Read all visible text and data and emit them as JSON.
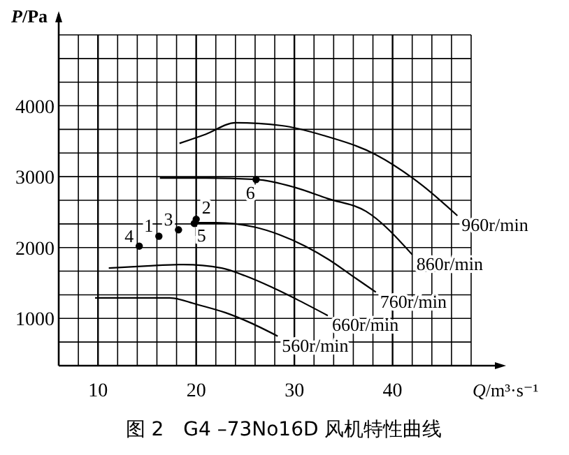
{
  "chart_data": {
    "type": "line",
    "title": "图 2　G4 –73No16D 风机特性曲线",
    "xlabel": "Q/m³·s⁻¹",
    "ylabel": "P/Pa",
    "xlim": [
      6,
      48
    ],
    "ylim": [
      333.3,
      5000
    ],
    "xticks": [
      {
        "value": 6,
        "label": null
      },
      {
        "value": 8,
        "label": null
      },
      10,
      {
        "value": 12,
        "label": null
      },
      {
        "value": 14,
        "label": null
      },
      {
        "value": 16,
        "label": null
      },
      {
        "value": 18,
        "label": null
      },
      20,
      {
        "value": 22,
        "label": null
      },
      {
        "value": 24,
        "label": null
      },
      {
        "value": 26,
        "label": null
      },
      {
        "value": 28,
        "label": null
      },
      30,
      {
        "value": 32,
        "label": null
      },
      {
        "value": 34,
        "label": null
      },
      {
        "value": 36,
        "label": null
      },
      {
        "value": 38,
        "label": null
      },
      40,
      {
        "value": 42,
        "label": null
      },
      {
        "value": 44,
        "label": null
      },
      {
        "value": 46,
        "label": null
      },
      {
        "value": 48,
        "label": null
      }
    ],
    "yticks": [
      {
        "value": 333.3,
        "label": null
      },
      {
        "value": 666.7,
        "label": null
      },
      1000,
      {
        "value": 1333.3,
        "label": null
      },
      {
        "value": 1666.7,
        "label": null
      },
      2000,
      {
        "value": 2333.3,
        "label": null
      },
      {
        "value": 2666.7,
        "label": null
      },
      3000,
      {
        "value": 3333.3,
        "label": null
      },
      {
        "value": 3666.7,
        "label": null
      },
      4000,
      {
        "value": 4333.3,
        "label": null
      },
      {
        "value": 4666.7,
        "label": null
      },
      {
        "value": 5000,
        "label": null
      }
    ],
    "grid": true,
    "legend": false,
    "line_style": "solid",
    "marker": "none",
    "series": [
      {
        "name": "960r/min",
        "color": "#000000",
        "x": [
          18.3,
          21,
          24,
          28.7,
          33,
          38.3,
          43,
          46.6
        ],
        "values": [
          3470,
          3600,
          3760,
          3720,
          3580,
          3310,
          2880,
          2450
        ]
      },
      {
        "name": "860r/min",
        "color": "#000000",
        "x": [
          16.3,
          21,
          26.1,
          30,
          33.4,
          37.3,
          42
        ],
        "values": [
          2980,
          2980,
          2960,
          2850,
          2690,
          2510,
          1900
        ]
      },
      {
        "name": "760r/min",
        "color": "#000000",
        "x": [
          20,
          22,
          25.9,
          28.5,
          31.1,
          33.5,
          35.9,
          38.3
        ],
        "values": [
          2350,
          2350,
          2290,
          2180,
          2020,
          1830,
          1600,
          1370
        ]
      },
      {
        "name": "660r/min",
        "color": "#000000",
        "x": [
          11.1,
          15,
          18.7,
          22.6,
          25,
          27.7,
          30.5,
          33.4
        ],
        "values": [
          1710,
          1740,
          1760,
          1710,
          1600,
          1440,
          1250,
          1040
        ]
      },
      {
        "name": "560r/min",
        "color": "#000000",
        "x": [
          9.7,
          13,
          17.3,
          20,
          23,
          25.5,
          28.3
        ],
        "values": [
          1290,
          1290,
          1290,
          1200,
          1080,
          940,
          750
        ]
      },
      {
        "type": "scatter",
        "marker": "circle",
        "color": "#000000",
        "x": [
          14.2,
          16.2,
          18.2,
          19.8,
          20,
          26.1
        ],
        "values": [
          2020,
          2160,
          2250,
          2340,
          2400,
          2960
        ]
      }
    ],
    "annotations": [
      {
        "text": "4",
        "x": 14.2,
        "y": 2020
      },
      {
        "text": "1",
        "x": 16.2,
        "y": 2160
      },
      {
        "text": "3",
        "x": 18.2,
        "y": 2250
      },
      {
        "text": "5",
        "x": 19.8,
        "y": 2340
      },
      {
        "text": "2",
        "x": 20,
        "y": 2400
      },
      {
        "text": "6",
        "x": 26.1,
        "y": 2960
      }
    ]
  }
}
